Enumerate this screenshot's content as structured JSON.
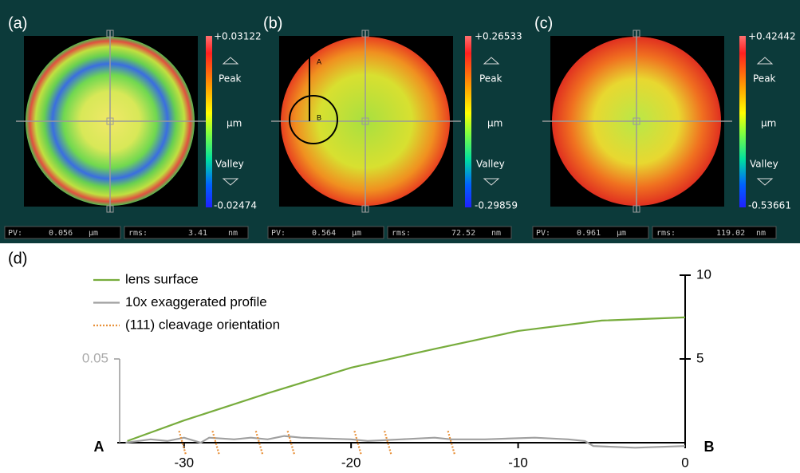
{
  "panels": [
    {
      "label": "(a)",
      "max": "+0.03122",
      "min": "-0.02474",
      "peak": "Peak",
      "unit": "µm",
      "valley": "Valley",
      "pv_label": "PV:",
      "pv": "0.056",
      "pv_unit": "µm",
      "rms_label": "rms:",
      "rms": "3.41",
      "rms_unit": "nm"
    },
    {
      "label": "(b)",
      "max": "+0.26533",
      "min": "-0.29859",
      "peak": "Peak",
      "unit": "µm",
      "valley": "Valley",
      "pv_label": "PV:",
      "pv": "0.564",
      "pv_unit": "µm",
      "rms_label": "rms:",
      "rms": "72.52",
      "rms_unit": "nm",
      "annotations": [
        "A",
        "B"
      ]
    },
    {
      "label": "(c)",
      "max": "+0.42442",
      "min": "-0.53661",
      "peak": "Peak",
      "unit": "µm",
      "valley": "Valley",
      "pv_label": "PV:",
      "pv": "0.961",
      "pv_unit": "µm",
      "rms_label": "rms:",
      "rms": "119.02",
      "rms_unit": "nm"
    }
  ],
  "chart_data": {
    "type": "line",
    "label": "(d)",
    "start_label": "A",
    "end_label": "B",
    "xlim": [
      -34,
      0
    ],
    "xticks": [
      -30,
      -20,
      -10,
      0
    ],
    "ylim": [
      0,
      0.1
    ],
    "yticks": [
      0.05
    ],
    "y2lim": [
      0,
      10
    ],
    "y2ticks": [
      5,
      10
    ],
    "legend": "upper left",
    "series": [
      {
        "name": "lens surface",
        "color": "#77ac3c",
        "axis": "y2",
        "x": [
          -33.4,
          -30,
          -25,
          -20,
          -15,
          -10,
          -5,
          0
        ],
        "values": [
          0.1,
          1.33,
          2.95,
          4.48,
          5.6,
          6.67,
          7.29,
          7.48
        ]
      },
      {
        "name": "10x exaggerated profile",
        "color": "#a0a0a0",
        "x": [
          -33.5,
          -32,
          -31,
          -30,
          -29,
          -28.5,
          -27,
          -26,
          -25,
          -24,
          -23,
          -20,
          -19,
          -17,
          -15,
          -14,
          -12,
          -9,
          -7,
          -6,
          -5.5,
          -3,
          0
        ],
        "values": [
          0,
          0.002,
          0.001,
          0.003,
          0,
          0.003,
          0.002,
          0.003,
          0.002,
          0.004,
          0.003,
          0.002,
          0.001,
          0.002,
          0.003,
          0.002,
          0.002,
          0.003,
          0.002,
          0.001,
          -0.002,
          -0.003,
          -0.002
        ]
      },
      {
        "name": "(111) cleavage orientation",
        "color": "#e8913a",
        "dashed": true,
        "x": [
          -30.3,
          -29.9,
          null,
          -28.3,
          -27.9,
          null,
          -25.7,
          -25.3,
          null,
          -23.8,
          -23.4,
          null,
          -19.8,
          -19.4,
          null,
          -18.0,
          -17.6,
          null,
          -14.2,
          -13.8
        ],
        "values": [
          0.007,
          -0.007,
          null,
          0.007,
          -0.007,
          null,
          0.007,
          -0.007,
          null,
          0.007,
          -0.007,
          null,
          0.007,
          -0.007,
          null,
          0.007,
          -0.007,
          null,
          0.007,
          -0.007
        ]
      }
    ]
  }
}
